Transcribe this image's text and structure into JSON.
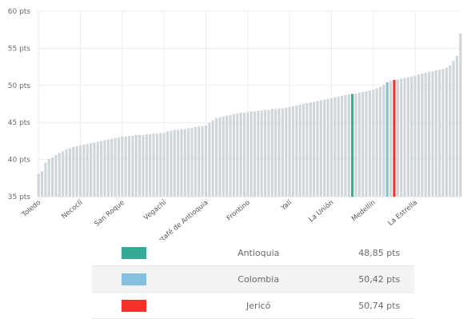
{
  "chart_data": {
    "type": "bar",
    "title": "",
    "xlabel": "",
    "ylabel": "",
    "ylim": [
      35,
      60
    ],
    "yticks": [
      "35 pts",
      "40 pts",
      "45 pts",
      "50 pts",
      "55 pts",
      "60 pts"
    ],
    "ytick_values": [
      35,
      40,
      45,
      50,
      55,
      60
    ],
    "grid": true,
    "colors": {
      "default": "#cfd6d9",
      "Antioquia": "#35ab94",
      "Colombia": "#86c0df",
      "Jericó": "#f2312d"
    },
    "x_labels": [
      {
        "label": "Toledo",
        "index": 0
      },
      {
        "label": "Necoclí",
        "index": 12
      },
      {
        "label": "San Roque",
        "index": 24
      },
      {
        "label": "Vegachí",
        "index": 36
      },
      {
        "label": "Caicedo / Santafé de Antioquia",
        "index": 48
      },
      {
        "label": "Frontino",
        "index": 60
      },
      {
        "label": "Yalí",
        "index": 72
      },
      {
        "label": "La Unión",
        "index": 84
      },
      {
        "label": "Medellín",
        "index": 96
      },
      {
        "label": "La Estrella",
        "index": 108
      }
    ],
    "values": [
      38.1,
      38.4,
      39.6,
      40.1,
      40.3,
      40.6,
      40.9,
      41.1,
      41.4,
      41.5,
      41.7,
      41.8,
      41.9,
      42.0,
      42.1,
      42.2,
      42.3,
      42.4,
      42.5,
      42.6,
      42.7,
      42.8,
      42.9,
      43.0,
      43.1,
      43.1,
      43.2,
      43.2,
      43.3,
      43.3,
      43.3,
      43.4,
      43.4,
      43.5,
      43.5,
      43.6,
      43.6,
      43.8,
      43.9,
      44.0,
      44.0,
      44.1,
      44.1,
      44.2,
      44.3,
      44.4,
      44.5,
      44.5,
      44.6,
      45.0,
      45.3,
      45.6,
      45.7,
      45.8,
      45.9,
      46.0,
      46.1,
      46.2,
      46.3,
      46.3,
      46.4,
      46.5,
      46.5,
      46.6,
      46.6,
      46.7,
      46.7,
      46.8,
      46.8,
      46.9,
      46.9,
      47.0,
      47.1,
      47.2,
      47.3,
      47.4,
      47.5,
      47.6,
      47.7,
      47.8,
      47.9,
      48.0,
      48.1,
      48.2,
      48.3,
      48.4,
      48.5,
      48.6,
      48.7,
      48.8,
      48.85,
      48.9,
      49.0,
      49.1,
      49.2,
      49.3,
      49.4,
      49.6,
      49.8,
      50.1,
      50.42,
      50.6,
      50.74,
      50.8,
      50.9,
      51.0,
      51.1,
      51.2,
      51.3,
      51.5,
      51.6,
      51.7,
      51.8,
      51.9,
      52.0,
      52.1,
      52.2,
      52.4,
      52.7,
      53.3,
      54.0,
      57.0
    ],
    "highlights": [
      {
        "name": "Antioquia",
        "index": 90,
        "value": 48.85
      },
      {
        "name": "Colombia",
        "index": 100,
        "value": 50.42
      },
      {
        "name": "Jericó",
        "index": 102,
        "value": 50.74
      }
    ]
  },
  "legend": [
    {
      "name": "Antioquia",
      "value": "48,85 pts",
      "color": "#35ab94"
    },
    {
      "name": "Colombia",
      "value": "50,42 pts",
      "color": "#86c0df"
    },
    {
      "name": "Jericó",
      "value": "50,74 pts",
      "color": "#f2312d"
    }
  ]
}
